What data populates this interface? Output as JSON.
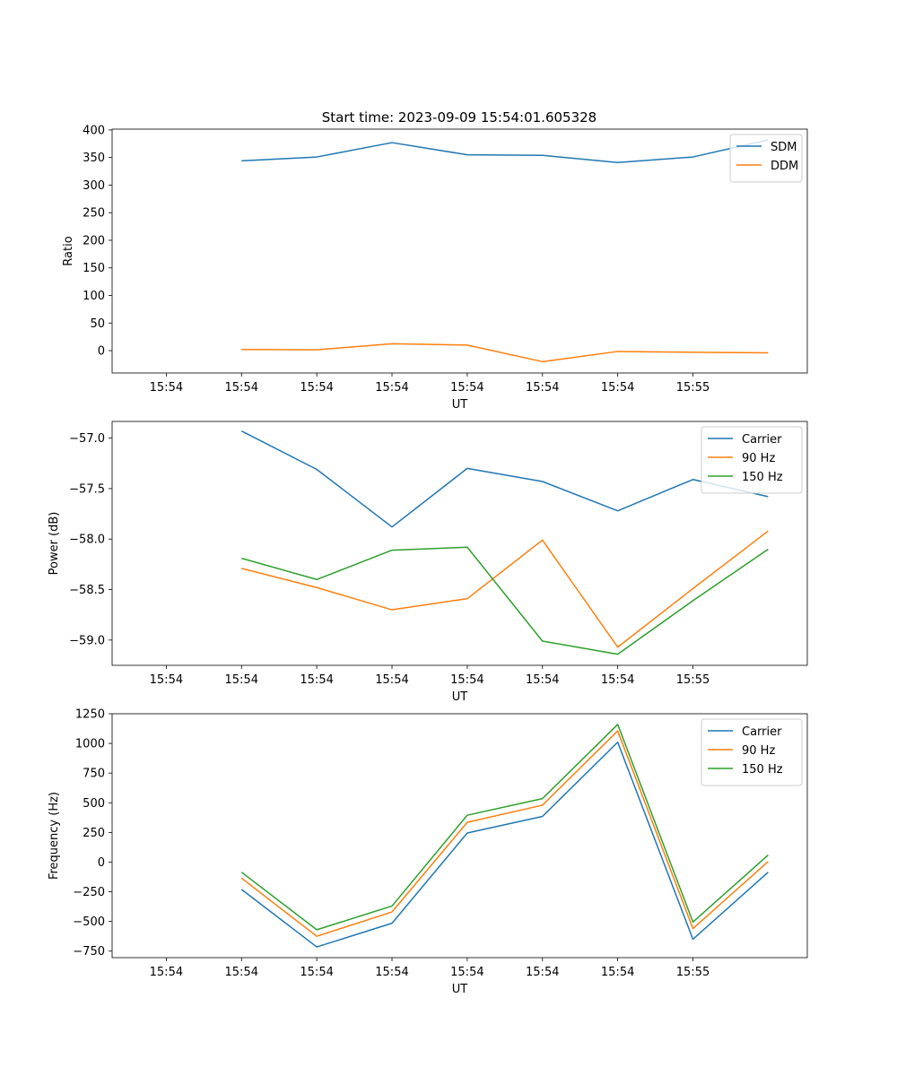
{
  "figure_title": "Start time: 2023-09-09 15:54:01.605328",
  "colors": {
    "blue": "#1f77b4",
    "orange": "#ff7f0e",
    "green": "#2ca02c"
  },
  "chart_data": [
    {
      "type": "line",
      "title": "Start time: 2023-09-09 15:54:01.605328",
      "xlabel": "UT",
      "ylabel": "Ratio",
      "x_tick_labels": [
        "15:54",
        "15:54",
        "15:54",
        "15:54",
        "15:54",
        "15:54",
        "15:54",
        "15:55"
      ],
      "x": [
        1,
        2,
        3,
        4,
        5,
        6,
        7,
        8
      ],
      "xlim": [
        -0.72,
        8.52
      ],
      "ylim": [
        -40.6,
        401.5
      ],
      "yticks": [
        0,
        50,
        100,
        150,
        200,
        250,
        300,
        350,
        400
      ],
      "ytick_labels": [
        "0",
        "50",
        "100",
        "150",
        "200",
        "250",
        "300",
        "350",
        "400"
      ],
      "legend": "top-right",
      "series": [
        {
          "name": "SDM",
          "color": "#1f77b4",
          "values": [
            344,
            351,
            377,
            355,
            354,
            341,
            351,
            382
          ]
        },
        {
          "name": "DDM",
          "color": "#ff7f0e",
          "values": [
            2,
            1.5,
            12.5,
            10,
            -20,
            -1.5,
            -3,
            -4
          ]
        }
      ]
    },
    {
      "type": "line",
      "title": "",
      "xlabel": "UT",
      "ylabel": "Power (dB)",
      "x_tick_labels": [
        "15:54",
        "15:54",
        "15:54",
        "15:54",
        "15:54",
        "15:54",
        "15:54",
        "15:55"
      ],
      "x": [
        1,
        2,
        3,
        4,
        5,
        6,
        7,
        8
      ],
      "xlim": [
        -0.72,
        8.52
      ],
      "ylim": [
        -59.25,
        -56.835
      ],
      "yticks": [
        -59.0,
        -58.5,
        -58.0,
        -57.5,
        -57.0
      ],
      "ytick_labels": [
        "−59.0",
        "−58.5",
        "−58.0",
        "−57.5",
        "−57.0"
      ],
      "legend": "top-right",
      "series": [
        {
          "name": "Carrier",
          "color": "#1f77b4",
          "values": [
            -56.93,
            -57.31,
            -57.88,
            -57.3,
            -57.43,
            -57.72,
            -57.41,
            -57.58
          ]
        },
        {
          "name": "90 Hz",
          "color": "#ff7f0e",
          "values": [
            -58.29,
            -58.48,
            -58.7,
            -58.59,
            -58.01,
            -59.07,
            -58.49,
            -57.92
          ]
        },
        {
          "name": "150 Hz",
          "color": "#2ca02c",
          "values": [
            -58.19,
            -58.4,
            -58.11,
            -58.08,
            -59.01,
            -59.14,
            -58.61,
            -58.1
          ]
        }
      ]
    },
    {
      "type": "line",
      "title": "",
      "xlabel": "UT",
      "ylabel": "Frequency (Hz)",
      "x_tick_labels": [
        "15:54",
        "15:54",
        "15:54",
        "15:54",
        "15:54",
        "15:54",
        "15:54",
        "15:55"
      ],
      "x": [
        1,
        2,
        3,
        4,
        5,
        6,
        7,
        8
      ],
      "xlim": [
        -0.72,
        8.52
      ],
      "ylim": [
        -805,
        1250
      ],
      "yticks": [
        -750,
        -500,
        -250,
        0,
        250,
        500,
        750,
        1000,
        1250
      ],
      "ytick_labels": [
        "−750",
        "−500",
        "−250",
        "0",
        "250",
        "500",
        "750",
        "1000",
        "1250"
      ],
      "legend": "top-right",
      "series": [
        {
          "name": "Carrier",
          "color": "#1f77b4",
          "values": [
            -230,
            -715,
            -515,
            245,
            385,
            1010,
            -650,
            -85
          ]
        },
        {
          "name": "90 Hz",
          "color": "#ff7f0e",
          "values": [
            -135,
            -625,
            -420,
            335,
            480,
            1105,
            -560,
            5
          ]
        },
        {
          "name": "150 Hz",
          "color": "#2ca02c",
          "values": [
            -85,
            -570,
            -370,
            395,
            535,
            1160,
            -505,
            60
          ]
        }
      ]
    }
  ]
}
